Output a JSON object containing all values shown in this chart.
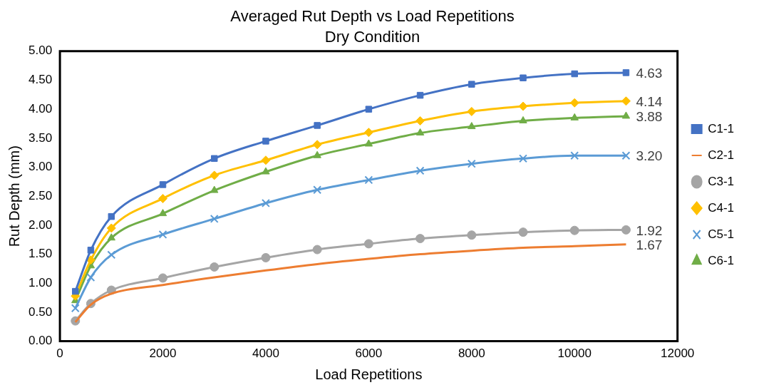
{
  "chart_data": {
    "type": "line",
    "title": "Averaged Rut Depth vs Load Repetitions",
    "subtitle": "Dry Condition",
    "xlabel": "Load Repetitions",
    "ylabel": "Rut Depth (mm)",
    "x": [
      300,
      600,
      1000,
      2000,
      3000,
      4000,
      5000,
      6000,
      7000,
      8000,
      9000,
      10000,
      11000
    ],
    "xlim": [
      0,
      12000
    ],
    "xticks": [
      0,
      2000,
      4000,
      6000,
      8000,
      10000,
      12000
    ],
    "ylim": [
      0,
      5
    ],
    "yticks": [
      {
        "value": 0,
        "label": "0.00"
      },
      {
        "value": 0.5,
        "label": "0.50"
      },
      {
        "value": 1,
        "label": "1.00"
      },
      {
        "value": 1.5,
        "label": "1.50"
      },
      {
        "value": 2,
        "label": "2.00"
      },
      {
        "value": 2.5,
        "label": "2.50"
      },
      {
        "value": 3,
        "label": "3.00"
      },
      {
        "value": 3.5,
        "label": "3.50"
      },
      {
        "value": 4,
        "label": "4.00"
      },
      {
        "value": 4.5,
        "label": "4.50"
      },
      {
        "value": 5,
        "label": "5.00"
      }
    ],
    "grid": false,
    "legend": "right",
    "line_style": "solid",
    "series": [
      {
        "name": "C1-1",
        "color": "#4472c4",
        "marker": "square",
        "values": [
          0.86,
          1.57,
          2.15,
          2.7,
          3.15,
          3.45,
          3.72,
          4.0,
          4.24,
          4.43,
          4.54,
          4.61,
          4.63
        ],
        "value_labels": [
          null,
          null,
          null,
          null,
          null,
          null,
          null,
          null,
          null,
          null,
          null,
          null,
          "4.63"
        ]
      },
      {
        "name": "C2-1",
        "color": "#ed7d31",
        "marker": "none",
        "values": [
          0.33,
          0.63,
          0.82,
          0.97,
          1.1,
          1.22,
          1.33,
          1.42,
          1.5,
          1.56,
          1.61,
          1.64,
          1.67
        ],
        "value_labels": [
          null,
          null,
          null,
          null,
          null,
          null,
          null,
          null,
          null,
          null,
          null,
          null,
          "1.67"
        ]
      },
      {
        "name": "C3-1",
        "color": "#a5a5a5",
        "marker": "circle",
        "values": [
          0.35,
          0.65,
          0.88,
          1.09,
          1.28,
          1.44,
          1.58,
          1.68,
          1.77,
          1.83,
          1.88,
          1.91,
          1.92
        ],
        "value_labels": [
          null,
          null,
          null,
          null,
          null,
          null,
          null,
          null,
          null,
          null,
          null,
          null,
          "1.92"
        ]
      },
      {
        "name": "C4-1",
        "color": "#ffc000",
        "marker": "diamond",
        "values": [
          0.78,
          1.4,
          1.95,
          2.46,
          2.86,
          3.12,
          3.39,
          3.6,
          3.8,
          3.96,
          4.05,
          4.11,
          4.14
        ],
        "value_labels": [
          null,
          null,
          null,
          null,
          null,
          null,
          null,
          null,
          null,
          null,
          null,
          null,
          "4.14"
        ]
      },
      {
        "name": "C5-1",
        "color": "#5b9bd5",
        "marker": "cross",
        "values": [
          0.57,
          1.1,
          1.49,
          1.84,
          2.11,
          2.38,
          2.61,
          2.78,
          2.94,
          3.06,
          3.15,
          3.2,
          3.2
        ],
        "value_labels": [
          null,
          null,
          null,
          null,
          null,
          null,
          null,
          null,
          null,
          null,
          null,
          null,
          "3.20"
        ]
      },
      {
        "name": "C6-1",
        "color": "#70ad47",
        "marker": "triangle",
        "values": [
          0.7,
          1.3,
          1.78,
          2.2,
          2.6,
          2.92,
          3.2,
          3.4,
          3.59,
          3.7,
          3.8,
          3.85,
          3.88
        ],
        "value_labels": [
          null,
          null,
          null,
          null,
          null,
          null,
          null,
          null,
          null,
          null,
          null,
          null,
          "3.88"
        ]
      }
    ]
  }
}
